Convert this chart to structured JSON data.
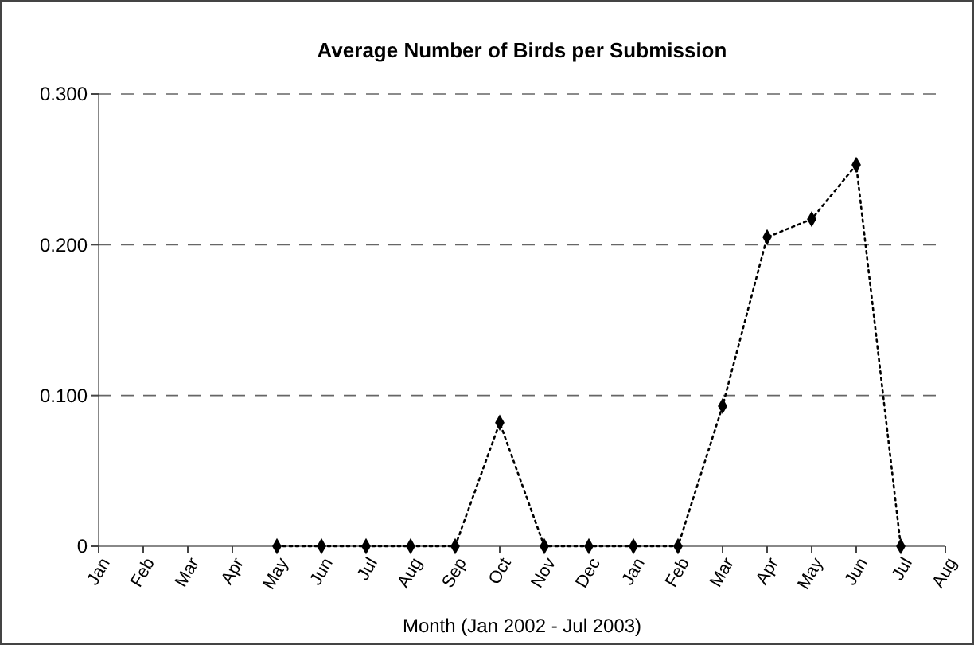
{
  "chart_data": {
    "type": "line",
    "title": "Average Number of Birds per Submission",
    "xlabel": "Month (Jan 2002 - Jul 2003)",
    "categories": [
      "Jan",
      "Feb",
      "Mar",
      "Apr",
      "May",
      "Jun",
      "Jul",
      "Aug",
      "Sep",
      "Oct",
      "Nov",
      "Dec",
      "Jan",
      "Feb",
      "Mar",
      "Apr",
      "May",
      "Jun",
      "Jul",
      "Aug"
    ],
    "series": [
      {
        "color": "#000000",
        "values": [
          null,
          null,
          null,
          null,
          0,
          0,
          0,
          0,
          0,
          0.082,
          0,
          0,
          0,
          0,
          0.093,
          0.205,
          0.217,
          0.253,
          0,
          null
        ]
      }
    ],
    "ylim": [
      0,
      0.3
    ],
    "yticks": [
      0,
      {
        "value": 0.1,
        "label": "0.100"
      },
      {
        "value": 0.2,
        "label": "0.200"
      },
      {
        "value": 0.3,
        "label": "0.300"
      }
    ],
    "grid": "y",
    "marker": "diamond",
    "line_style": "dotted"
  }
}
